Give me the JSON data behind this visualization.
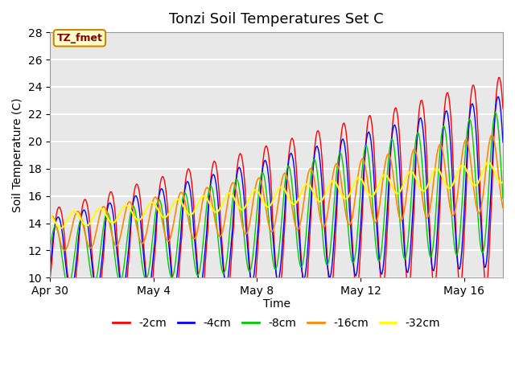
{
  "title": "Tonzi Soil Temperatures Set C",
  "xlabel": "Time",
  "ylabel": "Soil Temperature (C)",
  "ylim": [
    10,
    28
  ],
  "yticks": [
    10,
    12,
    14,
    16,
    18,
    20,
    22,
    24,
    26,
    28
  ],
  "plot_bg_color": "#e8e8e8",
  "series": [
    {
      "label": "-2cm",
      "color": "#ff0000"
    },
    {
      "label": "-4cm",
      "color": "#0000ff"
    },
    {
      "label": "-8cm",
      "color": "#00cc00"
    },
    {
      "label": "-16cm",
      "color": "#ff8800"
    },
    {
      "label": "-32cm",
      "color": "#ffff00"
    }
  ],
  "annotation_text": "TZ_fmet",
  "annotation_bg": "#ffffcc",
  "annotation_border": "#cc8800",
  "xtick_positions": [
    0,
    4,
    8,
    12,
    16
  ],
  "xtick_labels": [
    "Apr 30",
    "May 4",
    "May 8",
    "May 12",
    "May 16"
  ],
  "xlim": [
    0,
    17.5
  ]
}
